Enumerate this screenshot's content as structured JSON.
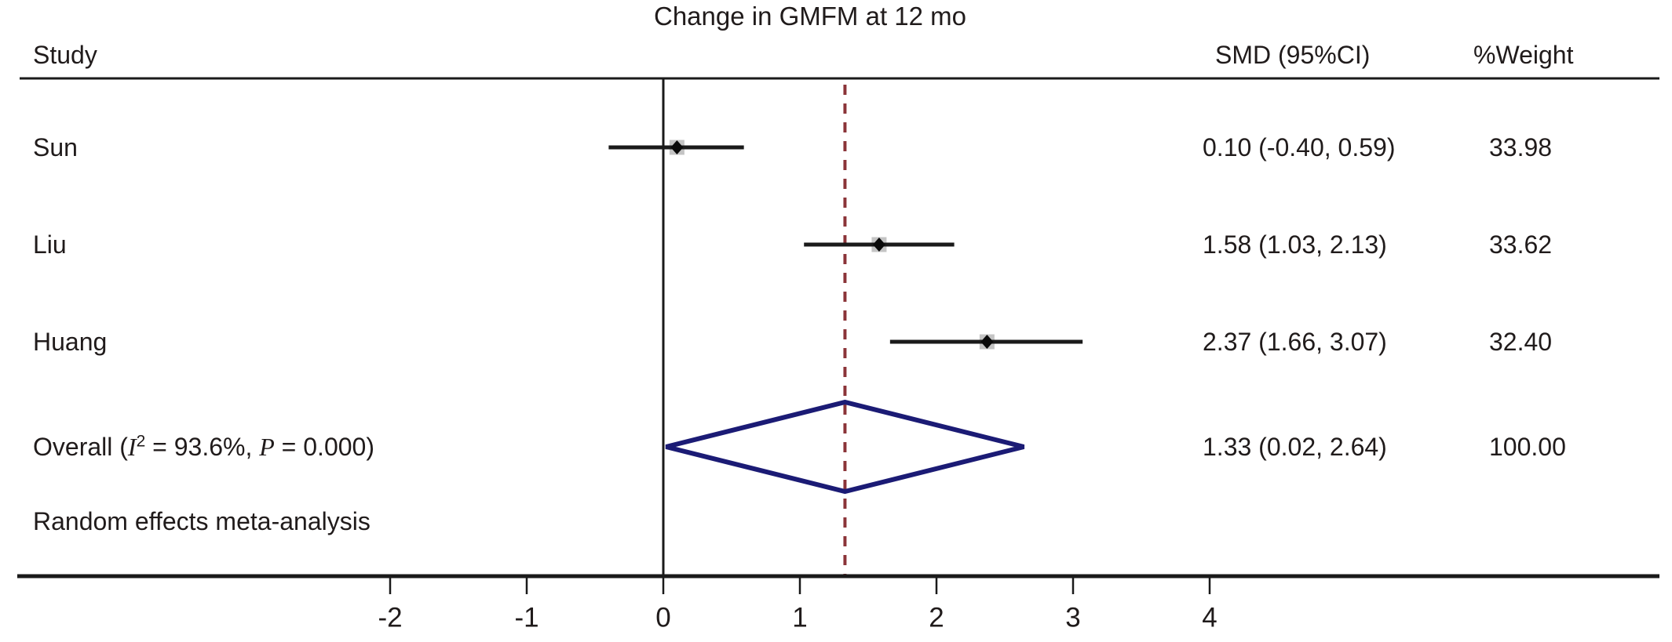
{
  "title": "Change in GMFM at 12 mo",
  "columns": {
    "study": "Study",
    "smd": "SMD (95%CI)",
    "weight": "%Weight"
  },
  "overall_row": {
    "label_pre": "Overall (",
    "label_i": "I",
    "label_i_sup": "2",
    "label_mid": " = 93.6%, ",
    "label_p": "P",
    "label_post": " = 0.000)",
    "smd_text": "1.33 (0.02, 2.64)",
    "weight_text": "100.00"
  },
  "footer": {
    "model_note": "Random effects meta-analysis"
  },
  "colors": {
    "text": "#201b1b",
    "line_black": "#1a1a1a",
    "overall_dashed_line": "#8b3438",
    "pooled_diamond": "#1b1b75",
    "marker_weight_box": "#c4c4c4",
    "marker_point": "#0a0a0a"
  },
  "chart_data": {
    "type": "forest",
    "title": "Change in GMFM at 12 mo",
    "effect_measure": "SMD",
    "x_axis": {
      "ticks": [
        -2,
        -1,
        0,
        1,
        2,
        3,
        4
      ],
      "tick_labels": [
        "-2",
        "-1",
        "0",
        "1",
        "2",
        "3",
        "4"
      ],
      "null_line_x": 0,
      "overall_dashed_line_x": 1.33,
      "xlim": [
        -2.9,
        4.6
      ]
    },
    "studies": [
      {
        "label": "Sun",
        "smd": 0.1,
        "ci_low": -0.4,
        "ci_high": 0.59,
        "weight": 33.98,
        "smd_text": "0.10 (-0.40, 0.59)",
        "weight_text": "33.98"
      },
      {
        "label": "Liu",
        "smd": 1.58,
        "ci_low": 1.03,
        "ci_high": 2.13,
        "weight": 33.62,
        "smd_text": "1.58 (1.03, 2.13)",
        "weight_text": "33.62"
      },
      {
        "label": "Huang",
        "smd": 2.37,
        "ci_low": 1.66,
        "ci_high": 3.07,
        "weight": 32.4,
        "smd_text": "2.37 (1.66, 3.07)",
        "weight_text": "32.40"
      }
    ],
    "overall": {
      "smd": 1.33,
      "ci_low": 0.02,
      "ci_high": 2.64,
      "weight": 100.0,
      "i_squared": "93.6%",
      "p_value": "0.000",
      "model": "Random effects"
    }
  }
}
